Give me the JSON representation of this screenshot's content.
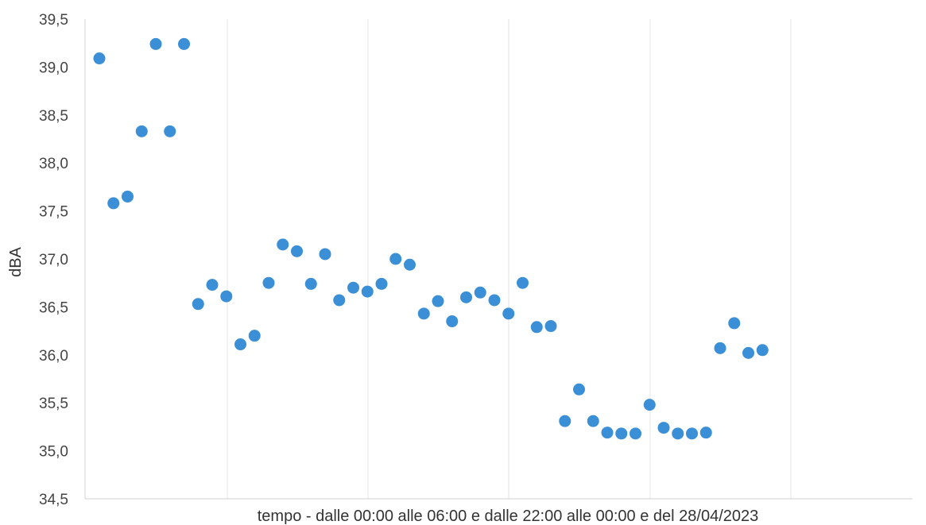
{
  "chart_data": {
    "type": "scatter",
    "title": "",
    "xlabel": "tempo - dalle 00:00 alle 06:00  e dalle 22:00 alle 00:00 e del 28/04/2023",
    "ylabel": "dBA",
    "ylim": [
      34.5,
      39.5
    ],
    "yticks": [
      "34,5",
      "35,0",
      "35,5",
      "36,0",
      "36,5",
      "37,0",
      "37,5",
      "38,0",
      "38,5",
      "39,0",
      "39,5"
    ],
    "grid": {
      "vertical": true,
      "horizontal": false
    },
    "legend": "none",
    "marker_color": "#3b8fd6",
    "series": [
      {
        "values": [
          39.09,
          37.58,
          37.65,
          38.33,
          39.24,
          38.33,
          39.24,
          36.53,
          36.73,
          36.61,
          36.11,
          36.2,
          36.75,
          37.15,
          37.08,
          36.74,
          37.05,
          36.57,
          36.7,
          36.66,
          36.74,
          37.0,
          36.94,
          36.43,
          36.56,
          36.35,
          36.6,
          36.65,
          36.57,
          36.43,
          36.75,
          36.29,
          36.3,
          35.31,
          35.64,
          35.31,
          35.19,
          35.18,
          35.18,
          35.48,
          35.24,
          35.18,
          35.18,
          35.19,
          36.07,
          36.33,
          36.02,
          36.05
        ]
      }
    ]
  }
}
